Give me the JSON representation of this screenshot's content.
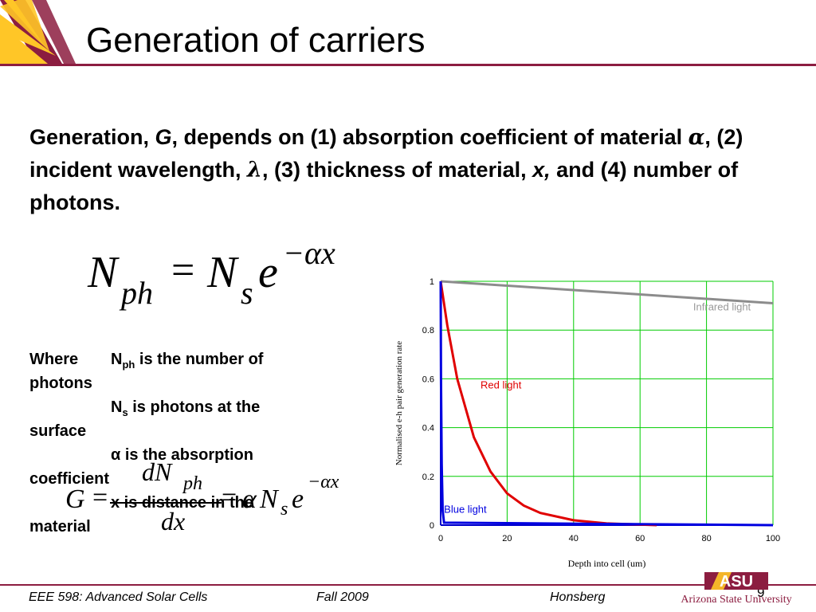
{
  "slide": {
    "title": "Generation of carriers",
    "page_number": "9"
  },
  "intro": {
    "p1": "Generation, ",
    "g": "G",
    "p2": ", depends on (1) absorption coefficient of material ",
    "alpha": "α",
    "p3": ", (2) incident wavelength, ",
    "lambda": "λ",
    "p4": ", (3) thickness of material, ",
    "x": "x,",
    "p5": " and (4) number of photons."
  },
  "equation1": {
    "lhs": "N",
    "lhs_sub": "ph",
    "eq": "=",
    "rhs": "N",
    "rhs_sub": "s",
    "base": "e",
    "exponent": "−αx"
  },
  "definitions": {
    "where": "Where",
    "nph": "N",
    "nph_sub": "ph",
    "nph_text": " is the number of",
    "photons": "photons",
    "ns": "N",
    "ns_sub": "s",
    "ns_text": " is photons at the",
    "surface": "surface",
    "alpha_text": "α is the absorption",
    "coefficient": "coefficient",
    "x_text": "x is distance in the",
    "material": "material"
  },
  "equation2": {
    "g": "G",
    "eq": "=",
    "num": "dN",
    "num_sub": "ph",
    "den": "dx",
    "eq2": "=",
    "alpha": "α",
    "n": "N",
    "n_sub": "s",
    "base": "e",
    "exponent": "−αx"
  },
  "chart_data": {
    "type": "line",
    "xlabel": "Depth into cell (um)",
    "ylabel": "Normalised e-h pair generation rate",
    "xlim": [
      0,
      100
    ],
    "ylim": [
      0,
      1
    ],
    "xticks": [
      "0",
      "20",
      "40",
      "60",
      "80",
      "100"
    ],
    "yticks": [
      "0",
      "0.2",
      "0.4",
      "0.6",
      "0.8",
      "1"
    ],
    "grid": true,
    "series": [
      {
        "name": "Infrared light",
        "color": "#8c8c8c",
        "x": [
          0,
          100
        ],
        "y": [
          1,
          0.91
        ]
      },
      {
        "name": "Red light",
        "color": "#e00000",
        "x": [
          0,
          2,
          5,
          10,
          15,
          20,
          25,
          30,
          40,
          50,
          65
        ],
        "y": [
          1,
          0.82,
          0.6,
          0.36,
          0.22,
          0.13,
          0.08,
          0.05,
          0.02,
          0.007,
          0
        ]
      },
      {
        "name": "Blue light",
        "color": "#0000e0",
        "x": [
          0,
          0.1,
          0.3,
          0.6,
          1,
          100
        ],
        "y": [
          1,
          0.6,
          0.25,
          0.06,
          0.01,
          0
        ]
      }
    ]
  },
  "footer": {
    "course": "EEE 598: Advanced Solar Cells",
    "term": "Fall 2009",
    "author": "Honsberg",
    "logo_text": "ASU",
    "university": "Arizona State University"
  },
  "colors": {
    "maroon": "#8c1d40",
    "gold": "#ffc627",
    "grid": "#00cc00"
  }
}
